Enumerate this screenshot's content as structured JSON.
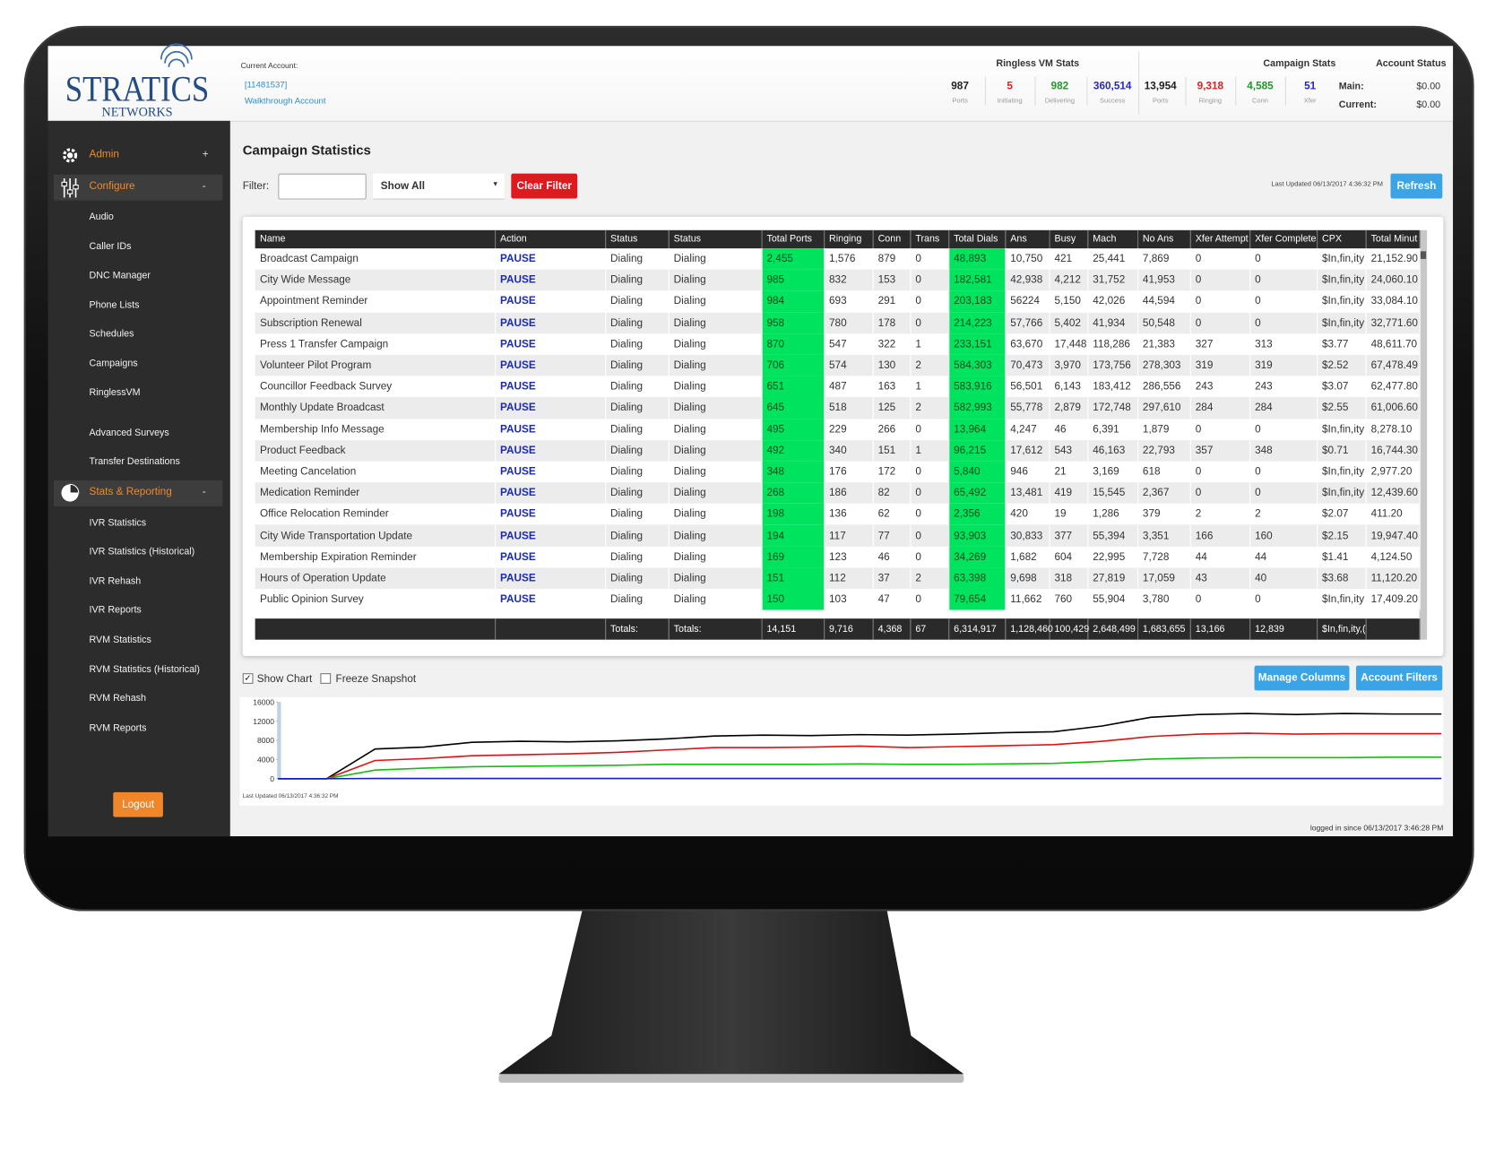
{
  "header": {
    "logo": {
      "name": "STRATICS",
      "tagline": "NETWORKS"
    },
    "account_label": "Current Account:",
    "account_id": "[11481537]",
    "account_name": "Walkthrough Account"
  },
  "stats": [
    {
      "title": "Ringless VM Stats",
      "items": [
        {
          "value": "987",
          "label": "Ports",
          "color": "#222222"
        },
        {
          "value": "5",
          "label": "Initiating",
          "color": "#e02020"
        },
        {
          "value": "982",
          "label": "Delivering",
          "color": "#1f9a2a"
        },
        {
          "value": "360,514",
          "label": "Success",
          "color": "#2a2ab8"
        }
      ]
    },
    {
      "title": "Campaign Stats",
      "items": [
        {
          "value": "13,954",
          "label": "Ports",
          "color": "#222222"
        },
        {
          "value": "9,318",
          "label": "Ringing",
          "color": "#e02020"
        },
        {
          "value": "4,585",
          "label": "Conn",
          "color": "#1f9a2a"
        },
        {
          "value": "51",
          "label": "Xfer",
          "color": "#2a2ab8"
        }
      ]
    }
  ],
  "account_status": {
    "title": "Account Status",
    "rows": [
      {
        "label": "Main:",
        "value": "$0.00"
      },
      {
        "label": "Current:",
        "value": "$0.00"
      }
    ]
  },
  "sidebar": {
    "sections": [
      {
        "label": "Admin",
        "toggle": "+",
        "items": []
      },
      {
        "label": "Configure",
        "toggle": "-",
        "items": [
          "Audio",
          "Caller IDs",
          "DNC Manager",
          "Phone Lists",
          "Schedules",
          "Campaigns",
          "RinglessVM",
          "Advanced Surveys",
          "Transfer Destinations"
        ]
      },
      {
        "label": "Stats & Reporting",
        "toggle": "-",
        "items": [
          "IVR Statistics",
          "IVR Statistics (Historical)",
          "IVR Rehash",
          "IVR Reports",
          "RVM Statistics",
          "RVM Statistics (Historical)",
          "RVM Rehash",
          "RVM Reports"
        ]
      }
    ],
    "logout": "Logout"
  },
  "main": {
    "title": "Campaign Statistics",
    "filter_label": "Filter:",
    "filter_option": "Show All",
    "clear_filter": "Clear Filter",
    "last_updated": "Last Updated 06/13/2017 4:36:32 PM",
    "refresh": "Refresh",
    "show_chart": "Show Chart",
    "freeze_snapshot": "Freeze Snapshot",
    "manage_columns": "Manage Columns",
    "account_filters": "Account Filters",
    "chart_updated": "Last Updated 06/13/2017 4:36:32 PM",
    "logged_in": "logged in since 06/13/2017 3:46:28 PM"
  },
  "table": {
    "columns": [
      "Name",
      "Action",
      "Status",
      "Status",
      "Total Ports",
      "Ringing",
      "Conn",
      "Trans",
      "Total Dials",
      "Ans",
      "Busy",
      "Mach",
      "No Ans",
      "Xfer Attempt",
      "Xfer Complete",
      "CPX",
      "Total Minut"
    ],
    "rows": [
      [
        "Broadcast Campaign",
        "PAUSE",
        "Dialing",
        "Dialing",
        "2,455",
        "1,576",
        "879",
        "0",
        "48,893",
        "10,750",
        "421",
        "25,441",
        "7,869",
        "0",
        "0",
        "$In,fin,ity",
        "21,152.90"
      ],
      [
        "City Wide Message",
        "PAUSE",
        "Dialing",
        "Dialing",
        "985",
        "832",
        "153",
        "0",
        "182,581",
        "42,938",
        "4,212",
        "31,752",
        "41,953",
        "0",
        "0",
        "$In,fin,ity",
        "24,060.10"
      ],
      [
        "Appointment Reminder",
        "PAUSE",
        "Dialing",
        "Dialing",
        "984",
        "693",
        "291",
        "0",
        "203,183",
        "56224",
        "5,150",
        "42,026",
        "44,594",
        "0",
        "0",
        "$In,fin,ity",
        "33,084.10"
      ],
      [
        "Subscription Renewal",
        "PAUSE",
        "Dialing",
        "Dialing",
        "958",
        "780",
        "178",
        "0",
        "214,223",
        "57,766",
        "5,402",
        "41,934",
        "50,548",
        "0",
        "0",
        "$In,fin,ity",
        "32,771.60"
      ],
      [
        "Press 1 Transfer Campaign",
        "PAUSE",
        "Dialing",
        "Dialing",
        "870",
        "547",
        "322",
        "1",
        "233,151",
        "63,670",
        "17,448",
        "118,286",
        "21,383",
        "327",
        "313",
        "$3.77",
        "48,611.70"
      ],
      [
        "Volunteer Pilot Program",
        "PAUSE",
        "Dialing",
        "Dialing",
        "706",
        "574",
        "130",
        "2",
        "584,303",
        "70,473",
        "3,970",
        "173,756",
        "278,303",
        "319",
        "319",
        "$2.52",
        "67,478.49"
      ],
      [
        "Councillor Feedback Survey",
        "PAUSE",
        "Dialing",
        "Dialing",
        "651",
        "487",
        "163",
        "1",
        "583,916",
        "56,501",
        "6,143",
        "183,412",
        "286,556",
        "243",
        "243",
        "$3.07",
        "62,477.80"
      ],
      [
        "Monthly Update Broadcast",
        "PAUSE",
        "Dialing",
        "Dialing",
        "645",
        "518",
        "125",
        "2",
        "582,993",
        "55,778",
        "2,879",
        "172,748",
        "297,610",
        "284",
        "284",
        "$2.55",
        "61,006.60"
      ],
      [
        "Membership Info Message",
        "PAUSE",
        "Dialing",
        "Dialing",
        "495",
        "229",
        "266",
        "0",
        "13,964",
        "4,247",
        "46",
        "6,391",
        "1,879",
        "0",
        "0",
        "$In,fin,ity",
        "8,278.10"
      ],
      [
        "Product Feedback",
        "PAUSE",
        "Dialing",
        "Dialing",
        "492",
        "340",
        "151",
        "1",
        "96,215",
        "17,612",
        "543",
        "46,163",
        "22,793",
        "357",
        "348",
        "$0.71",
        "16,744.30"
      ],
      [
        "Meeting Cancelation",
        "PAUSE",
        "Dialing",
        "Dialing",
        "348",
        "176",
        "172",
        "0",
        "5,840",
        "946",
        "21",
        "3,169",
        "618",
        "0",
        "0",
        "$In,fin,ity",
        "2,977.20"
      ],
      [
        "Medication Reminder",
        "PAUSE",
        "Dialing",
        "Dialing",
        "268",
        "186",
        "82",
        "0",
        "65,492",
        "13,481",
        "419",
        "15,545",
        "2,367",
        "0",
        "0",
        "$In,fin,ity",
        "12,439.60"
      ],
      [
        "Office Relocation Reminder",
        "PAUSE",
        "Dialing",
        "Dialing",
        "198",
        "136",
        "62",
        "0",
        "2,356",
        "420",
        "19",
        "1,286",
        "379",
        "2",
        "2",
        "$2.07",
        "411.20"
      ],
      [
        "City Wide Transportation Update",
        "PAUSE",
        "Dialing",
        "Dialing",
        "194",
        "117",
        "77",
        "0",
        "93,903",
        "30,833",
        "377",
        "55,394",
        "3,351",
        "166",
        "160",
        "$2.15",
        "19,947.40"
      ],
      [
        "Membership Expiration Reminder",
        "PAUSE",
        "Dialing",
        "Dialing",
        "169",
        "123",
        "46",
        "0",
        "34,269",
        "1,682",
        "604",
        "22,995",
        "7,728",
        "44",
        "44",
        "$1.41",
        "4,124.50"
      ],
      [
        "Hours of Operation Update",
        "PAUSE",
        "Dialing",
        "Dialing",
        "151",
        "112",
        "37",
        "2",
        "63,398",
        "9,698",
        "318",
        "27,819",
        "17,059",
        "43",
        "40",
        "$3.68",
        "11,120.20"
      ],
      [
        "Public Opinion Survey",
        "PAUSE",
        "Dialing",
        "Dialing",
        "150",
        "103",
        "47",
        "0",
        "79,654",
        "11,662",
        "760",
        "55,904",
        "3,780",
        "0",
        "0",
        "$In,fin,ity",
        "17,409.20"
      ]
    ],
    "totals": [
      null,
      null,
      "Totals:",
      "Totals:",
      "14,151",
      "9,716",
      "4,368",
      "67",
      "6,314,917",
      "1,128,460",
      "100,429",
      "2,648,499",
      "1,683,655",
      "13,166",
      "12,839",
      "$In,fin,ity,(",
      null
    ]
  },
  "chart_data": {
    "type": "line",
    "ylim": [
      0,
      16000
    ],
    "yticks": [
      0,
      4000,
      8000,
      12000,
      16000
    ],
    "grid": false,
    "series": [
      {
        "color": "#000000",
        "values": [
          0,
          0,
          6200,
          6600,
          7600,
          7800,
          7700,
          7900,
          8300,
          8900,
          9100,
          9000,
          9200,
          9100,
          9300,
          9600,
          9800,
          11000,
          12800,
          13400,
          13600,
          13400,
          13600,
          13500,
          13500
        ]
      },
      {
        "color": "#e01010",
        "values": [
          0,
          0,
          3800,
          4200,
          4800,
          5000,
          5200,
          5500,
          6000,
          6500,
          6500,
          6600,
          6800,
          6500,
          6700,
          6900,
          7100,
          7800,
          8800,
          9300,
          9500,
          9300,
          9400,
          9400,
          9400
        ]
      },
      {
        "color": "#10c010",
        "values": [
          0,
          0,
          1800,
          2200,
          2500,
          2600,
          2700,
          2800,
          3000,
          3000,
          3000,
          3000,
          3100,
          3000,
          3000,
          3100,
          3200,
          3600,
          4100,
          4300,
          4400,
          4400,
          4400,
          4500,
          4500
        ]
      },
      {
        "color": "#1020c0",
        "values": [
          0,
          0,
          50,
          50,
          50,
          50,
          50,
          50,
          50,
          50,
          50,
          50,
          50,
          50,
          50,
          50,
          50,
          50,
          50,
          50,
          50,
          50,
          50,
          50,
          50
        ]
      }
    ]
  }
}
